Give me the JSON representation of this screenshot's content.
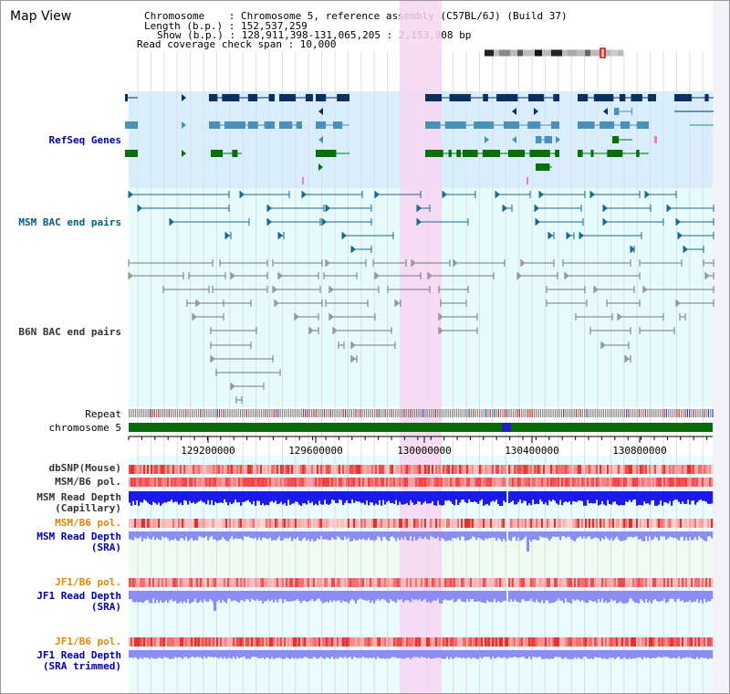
{
  "app": {
    "title": "Map View"
  },
  "header": {
    "line1": "Chromosome    : Chromosome 5, reference assembly (C57BL/6J) (Build 37)",
    "line2": "Length (b.p.) : 152,537,259",
    "line3": "Show (b.p.) : 128,911,398-131,065,205 : 2,153,808 bp",
    "line4": "Read coverage check span : 10,000"
  },
  "tracks": {
    "refseq": "RefSeq Genes",
    "msm_bac": "MSM BAC end pairs",
    "b6n_bac": "B6N BAC end pairs",
    "repeat": "Repeat",
    "chromosome": "chromosome 5",
    "dbsnp": "dbSNP(Mouse)",
    "msm_b6_pol_1": "MSM/B6 pol.",
    "msm_read_depth_cap_1": "MSM Read Depth",
    "msm_read_depth_cap_2": "(Capillary)",
    "msm_b6_pol_2": "MSM/B6 pol.",
    "msm_read_depth_sra_1": "MSM Read Depth",
    "msm_read_depth_sra_2": "(SRA)",
    "jf1_b6_pol_1": "JF1/B6 pol.",
    "jf1_read_depth_sra_1": "JF1 Read Depth",
    "jf1_read_depth_sra_2": "(SRA)",
    "jf1_b6_pol_2": "JF1/B6 pol.",
    "jf1_read_depth_trim_1": "JF1 Read Depth",
    "jf1_read_depth_trim_2": "(SRA trimmed)"
  },
  "axis": {
    "ticks": [
      "129200000",
      "129600000",
      "130000000",
      "130400000",
      "130800000"
    ]
  },
  "colors": {
    "highlight": "#f7d6f2",
    "refseq_bg": "#d8eefa",
    "bac_bg": "#e6fbfc",
    "gene_navy": "#0b2f63",
    "gene_teal": "#4a90b8",
    "gene_green": "#0a6e0a",
    "chrom_green": "#0a6a0a",
    "depth_blue": "#1a1aee",
    "depth_lilac": "#8c8cf2"
  }
}
